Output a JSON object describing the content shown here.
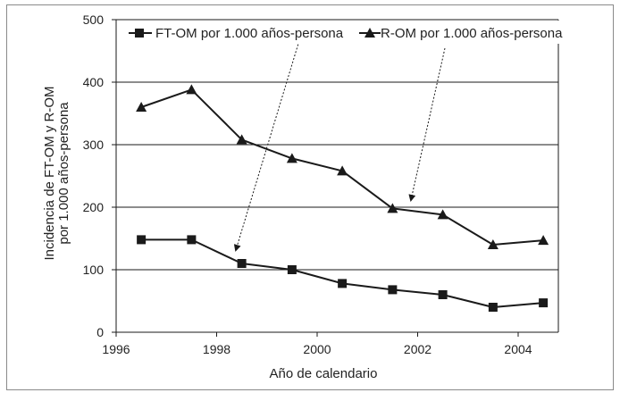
{
  "chart_data": {
    "type": "line",
    "xlabel": "Año de calendario",
    "ylabel_lines": [
      "Incidencia de FT-OM y R-OM",
      "por 1.000 años-persona"
    ],
    "xlim": [
      1996,
      2004.8
    ],
    "ylim": [
      0,
      500
    ],
    "xticks": [
      1996,
      1998,
      2000,
      2002,
      2004
    ],
    "yticks": [
      0,
      100,
      200,
      300,
      400,
      500
    ],
    "grid": "horizontal",
    "legend_position": "top",
    "series": [
      {
        "name": "FT-OM por 1.000 años-persona",
        "marker": "square",
        "color": "#1a1a1a",
        "x": [
          1996.5,
          1997.5,
          1998.5,
          1999.5,
          2000.5,
          2001.5,
          2002.5,
          2003.5,
          2004.5
        ],
        "y": [
          148,
          148,
          110,
          100,
          78,
          68,
          60,
          40,
          47
        ]
      },
      {
        "name": "R-OM por 1.000 años-persona",
        "marker": "triangle",
        "color": "#1a1a1a",
        "x": [
          1996.5,
          1997.5,
          1998.5,
          1999.5,
          2000.5,
          2001.5,
          2002.5,
          2003.5,
          2004.5
        ],
        "y": [
          360,
          388,
          308,
          278,
          258,
          198,
          188,
          140,
          147
        ]
      }
    ]
  }
}
